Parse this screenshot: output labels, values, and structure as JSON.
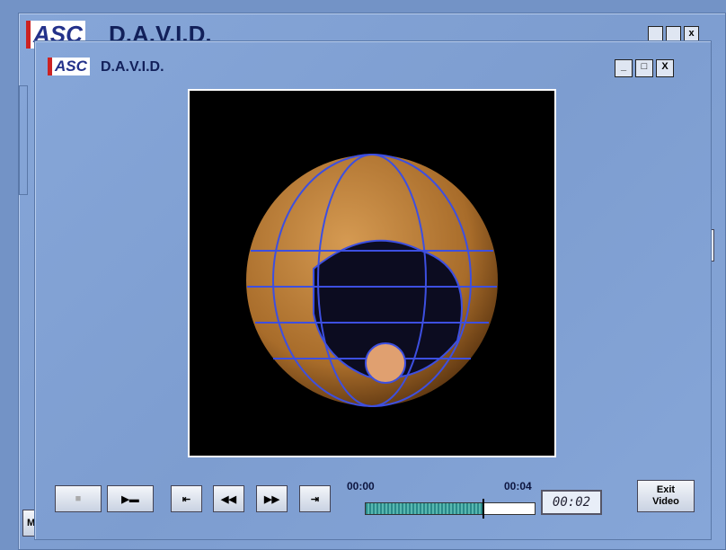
{
  "background_window": {
    "logo": "ASC",
    "title": "D.A.V.I.D.",
    "button": "M"
  },
  "window": {
    "logo": "ASC",
    "title": "D.A.V.I.D."
  },
  "player": {
    "time_start": "00:00",
    "time_end": "00:04",
    "time_current": "00:02",
    "exit_button": "Exit Video"
  }
}
